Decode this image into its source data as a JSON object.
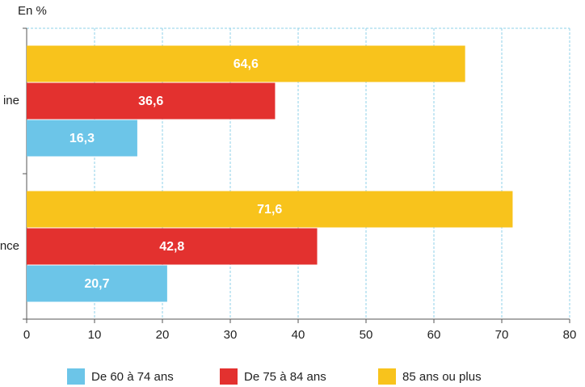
{
  "chart_data": {
    "type": "bar",
    "orientation": "horizontal",
    "unit_label": "En %",
    "categories": [
      "ine",
      "nce"
    ],
    "series": [
      {
        "name": "De 60 à 74 ans",
        "color": "#6cc5e8",
        "values": [
          16.3,
          20.7
        ],
        "value_labels": [
          "16,3",
          "20,7"
        ]
      },
      {
        "name": "De 75 à 84 ans",
        "color": "#e3312f",
        "values": [
          36.6,
          42.8
        ],
        "value_labels": [
          "36,6",
          "42,8"
        ]
      },
      {
        "name": "85 ans ou plus",
        "color": "#f8c31c",
        "values": [
          64.6,
          71.6
        ],
        "value_labels": [
          "64,6",
          "71,6"
        ]
      }
    ],
    "xlim": [
      0,
      80
    ],
    "xticks": [
      0,
      10,
      20,
      30,
      40,
      50,
      60,
      70,
      80
    ],
    "grid": true
  }
}
